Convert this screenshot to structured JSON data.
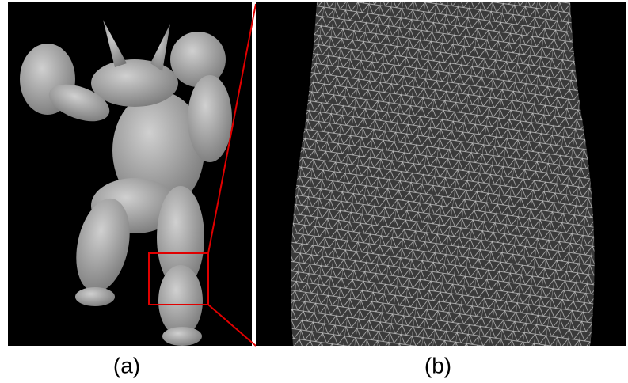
{
  "figure": {
    "captions": [
      "(a)",
      "(b)"
    ]
  }
}
